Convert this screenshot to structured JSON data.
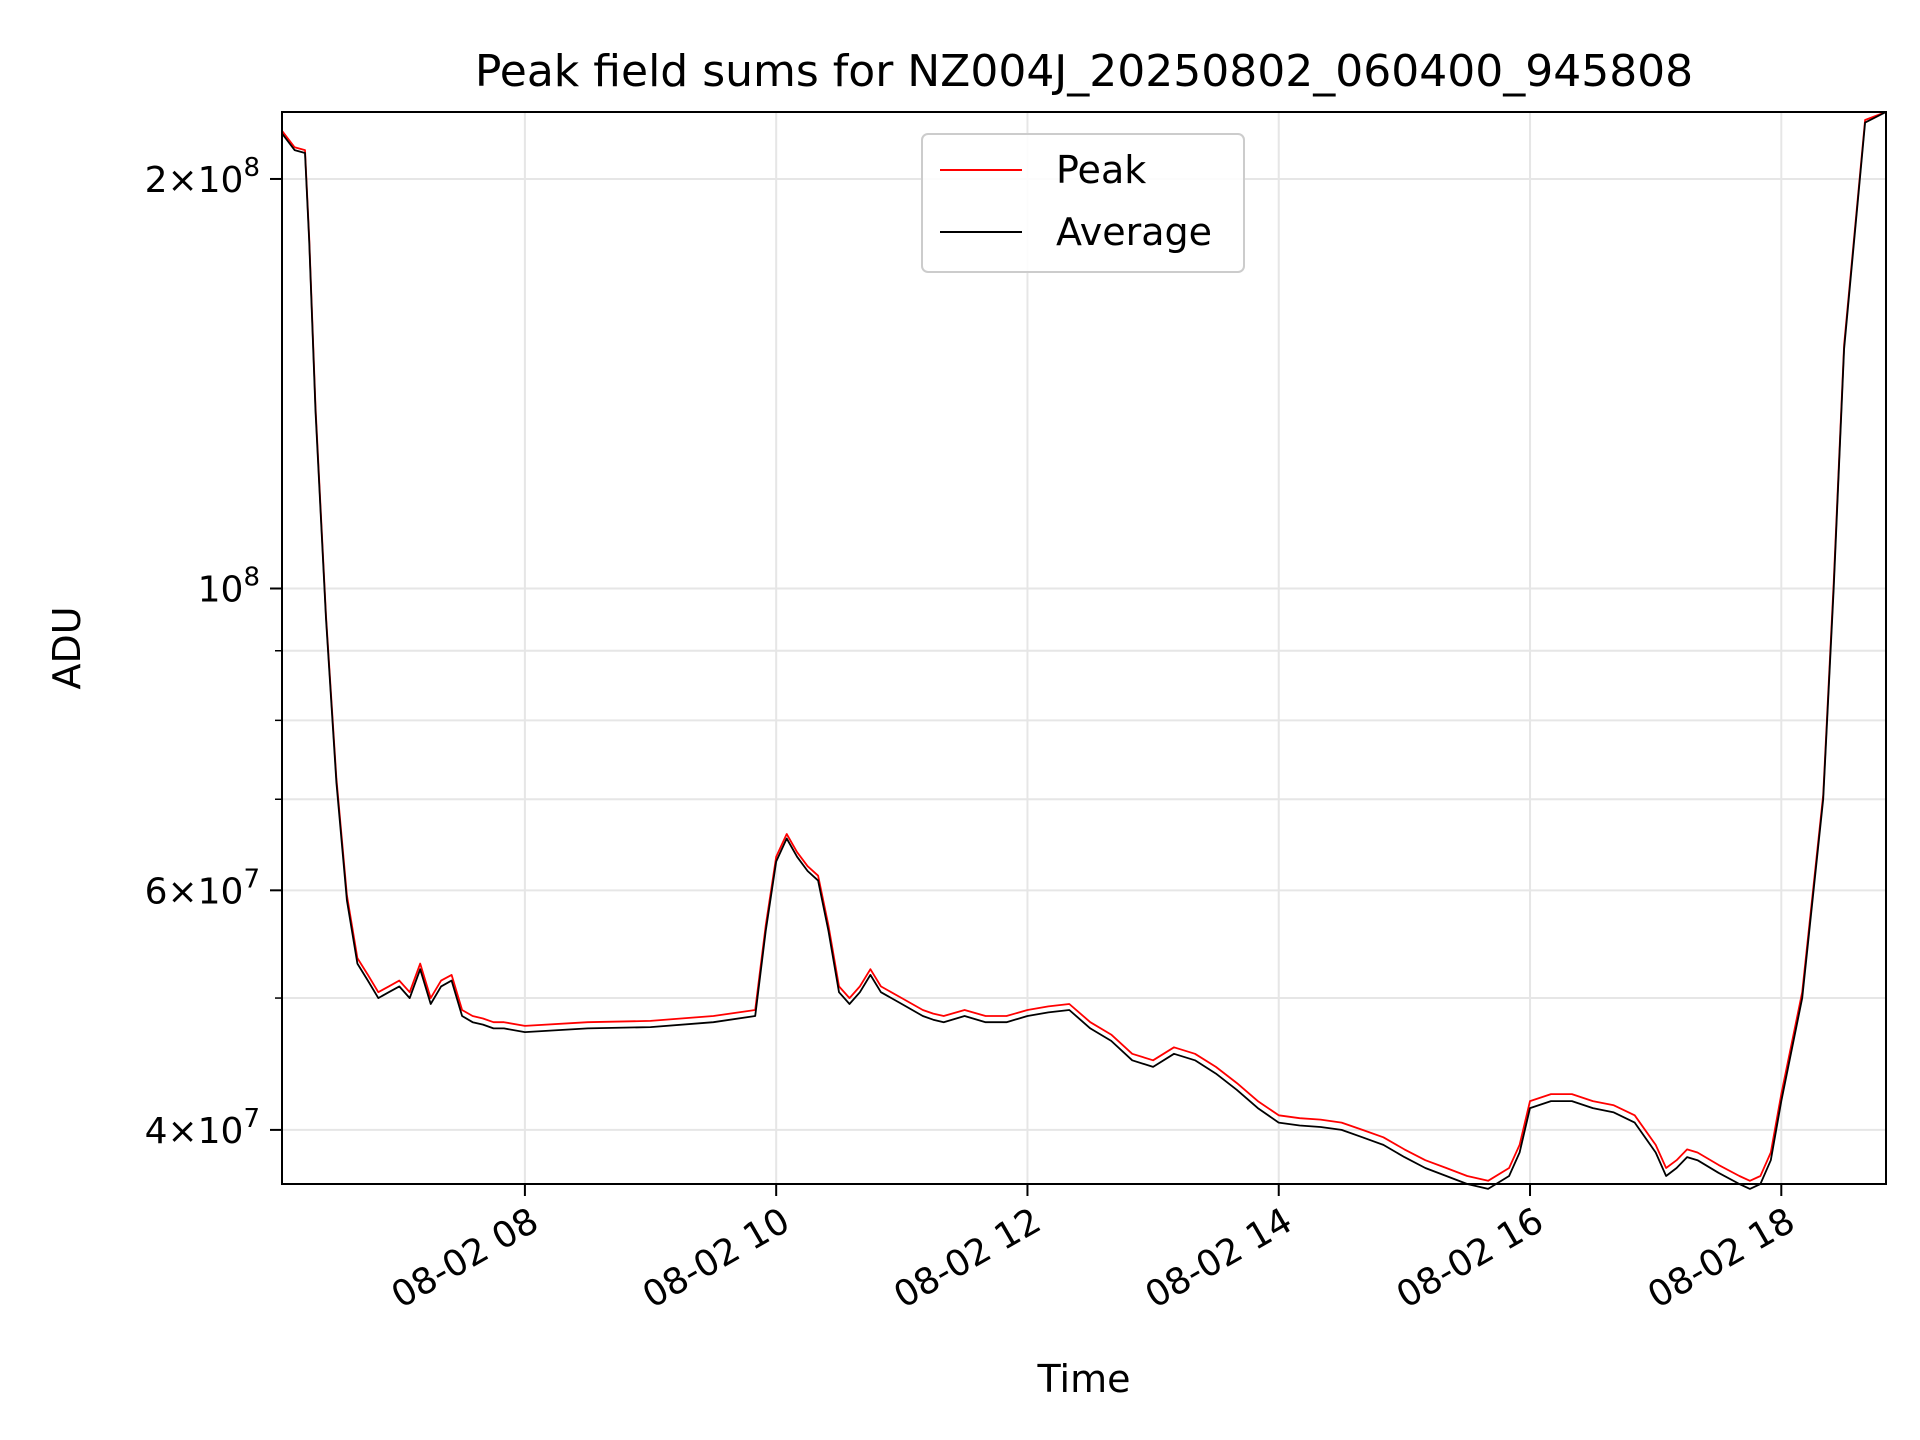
{
  "chart_data": {
    "type": "line",
    "title": "Peak field sums for NZ004J_20250802_060400_945808",
    "xlabel": "Time",
    "ylabel": "ADU",
    "y_scale": "log",
    "ylim": [
      36500000,
      224000000
    ],
    "xlim": [
      "08-02 06:04",
      "08-02 18:50"
    ],
    "x_ticks": [
      "08-02 08",
      "08-02 10",
      "08-02 12",
      "08-02 14",
      "08-02 16",
      "08-02 18"
    ],
    "y_ticks": [
      {
        "value": 40000000,
        "mantissa": "4",
        "exp": "7"
      },
      {
        "value": 60000000,
        "mantissa": "6",
        "exp": "7"
      },
      {
        "value": 100000000,
        "mantissa": "",
        "exp": "8"
      },
      {
        "value": 200000000,
        "mantissa": "2",
        "exp": "8"
      }
    ],
    "y_minor_ticks": [
      50000000,
      70000000,
      80000000,
      90000000
    ],
    "grid": true,
    "legend": {
      "position": "top-center",
      "entries": [
        "Peak",
        "Average"
      ]
    },
    "series": [
      {
        "name": "Average",
        "color": "#000000",
        "x": [
          "06:04",
          "06:10",
          "06:15",
          "06:17",
          "06:20",
          "06:25",
          "06:30",
          "06:35",
          "06:40",
          "06:45",
          "06:50",
          "06:55",
          "07:00",
          "07:05",
          "07:10",
          "07:15",
          "07:20",
          "07:25",
          "07:30",
          "07:35",
          "07:40",
          "07:45",
          "07:50",
          "08:00",
          "08:30",
          "09:00",
          "09:30",
          "09:50",
          "09:55",
          "10:00",
          "10:05",
          "10:10",
          "10:15",
          "10:20",
          "10:25",
          "10:30",
          "10:35",
          "10:40",
          "10:45",
          "10:50",
          "11:00",
          "11:10",
          "11:15",
          "11:20",
          "11:30",
          "11:40",
          "11:50",
          "12:00",
          "12:10",
          "12:20",
          "12:30",
          "12:40",
          "12:50",
          "13:00",
          "13:10",
          "13:20",
          "13:30",
          "13:40",
          "13:50",
          "14:00",
          "14:10",
          "14:20",
          "14:30",
          "14:40",
          "14:50",
          "15:00",
          "15:10",
          "15:20",
          "15:30",
          "15:40",
          "15:50",
          "15:55",
          "16:00",
          "16:10",
          "16:20",
          "16:30",
          "16:40",
          "16:50",
          "17:00",
          "17:05",
          "17:10",
          "17:15",
          "17:20",
          "17:30",
          "17:40",
          "17:45",
          "17:50",
          "17:55",
          "18:00",
          "18:10",
          "18:20",
          "18:25",
          "18:30",
          "18:40",
          "18:50"
        ],
        "values": [
          216000000.0,
          210000000.0,
          209000000.0,
          180000000.0,
          135000000.0,
          95000000.0,
          72000000.0,
          59000000.0,
          53000000.0,
          51500000.0,
          50000000.0,
          50500000.0,
          51000000.0,
          50000000.0,
          52500000.0,
          49500000.0,
          51000000.0,
          51500000.0,
          48500000.0,
          48000000.0,
          47800000.0,
          47500000.0,
          47500000.0,
          47200000.0,
          47500000.0,
          47600000.0,
          48000000.0,
          48500000.0,
          56000000.0,
          63000000.0,
          65500000.0,
          63500000.0,
          62000000.0,
          61000000.0,
          56000000.0,
          50500000.0,
          49500000.0,
          50500000.0,
          52000000.0,
          50500000.0,
          49500000.0,
          48500000.0,
          48200000.0,
          48000000.0,
          48500000.0,
          48000000.0,
          48000000.0,
          48500000.0,
          48800000.0,
          49000000.0,
          47500000.0,
          46500000.0,
          45000000.0,
          44500000.0,
          45500000.0,
          45000000.0,
          44000000.0,
          42800000.0,
          41500000.0,
          40500000.0,
          40300000.0,
          40200000.0,
          40000000.0,
          39500000.0,
          39000000.0,
          38200000.0,
          37500000.0,
          37000000.0,
          36500000.0,
          36200000.0,
          37000000.0,
          38500000.0,
          41500000.0,
          42000000.0,
          42000000.0,
          41500000.0,
          41200000.0,
          40500000.0,
          38500000.0,
          37000000.0,
          37500000.0,
          38200000.0,
          38000000.0,
          37200000.0,
          36500000.0,
          36200000.0,
          36500000.0,
          38000000.0,
          42000000.0,
          50000000.0,
          70000000.0,
          100000000.0,
          150000000.0,
          220000000.0,
          225000000.0
        ]
      },
      {
        "name": "Peak",
        "color": "#ff0000",
        "x": [
          "06:04",
          "06:10",
          "06:15",
          "06:17",
          "06:20",
          "06:25",
          "06:30",
          "06:35",
          "06:40",
          "06:45",
          "06:50",
          "06:55",
          "07:00",
          "07:05",
          "07:10",
          "07:15",
          "07:20",
          "07:25",
          "07:30",
          "07:35",
          "07:40",
          "07:45",
          "07:50",
          "08:00",
          "08:30",
          "09:00",
          "09:30",
          "09:50",
          "09:55",
          "10:00",
          "10:05",
          "10:10",
          "10:15",
          "10:20",
          "10:25",
          "10:30",
          "10:35",
          "10:40",
          "10:45",
          "10:50",
          "11:00",
          "11:10",
          "11:15",
          "11:20",
          "11:30",
          "11:40",
          "11:50",
          "12:00",
          "12:10",
          "12:20",
          "12:30",
          "12:40",
          "12:50",
          "13:00",
          "13:10",
          "13:20",
          "13:30",
          "13:40",
          "13:50",
          "14:00",
          "14:10",
          "14:20",
          "14:30",
          "14:40",
          "14:50",
          "15:00",
          "15:10",
          "15:20",
          "15:30",
          "15:40",
          "15:50",
          "15:55",
          "16:00",
          "16:10",
          "16:20",
          "16:30",
          "16:40",
          "16:50",
          "17:00",
          "17:05",
          "17:10",
          "17:15",
          "17:20",
          "17:30",
          "17:40",
          "17:45",
          "17:50",
          "17:55",
          "18:00",
          "18:10",
          "18:20",
          "18:25",
          "18:30",
          "18:40",
          "18:50"
        ],
        "values": [
          217000000.0,
          211000000.0,
          210000000.0,
          181000000.0,
          136000000.0,
          95500000.0,
          72500000.0,
          59500000.0,
          53500000.0,
          52000000.0,
          50500000.0,
          51000000.0,
          51500000.0,
          50500000.0,
          53000000.0,
          50000000.0,
          51500000.0,
          52000000.0,
          49000000.0,
          48500000.0,
          48300000.0,
          48000000.0,
          48000000.0,
          47700000.0,
          48000000.0,
          48100000.0,
          48500000.0,
          49000000.0,
          56500000.0,
          63500000.0,
          66000000.0,
          64000000.0,
          62500000.0,
          61500000.0,
          56500000.0,
          51000000.0,
          50000000.0,
          51000000.0,
          52500000.0,
          51000000.0,
          50000000.0,
          49000000.0,
          48700000.0,
          48500000.0,
          49000000.0,
          48500000.0,
          48500000.0,
          49000000.0,
          49300000.0,
          49500000.0,
          48000000.0,
          47000000.0,
          45500000.0,
          45000000.0,
          46000000.0,
          45500000.0,
          44500000.0,
          43300000.0,
          42000000.0,
          41000000.0,
          40800000.0,
          40700000.0,
          40500000.0,
          40000000.0,
          39500000.0,
          38700000.0,
          38000000.0,
          37500000.0,
          37000000.0,
          36700000.0,
          37500000.0,
          39000000.0,
          42000000.0,
          42500000.0,
          42500000.0,
          42000000.0,
          41700000.0,
          41000000.0,
          39000000.0,
          37500000.0,
          38000000.0,
          38700000.0,
          38500000.0,
          37700000.0,
          37000000.0,
          36700000.0,
          37000000.0,
          38500000.0,
          42500000.0,
          50500000.0,
          70500000.0,
          101000000.0,
          151000000.0,
          221000000.0,
          226000000.0
        ]
      }
    ]
  }
}
